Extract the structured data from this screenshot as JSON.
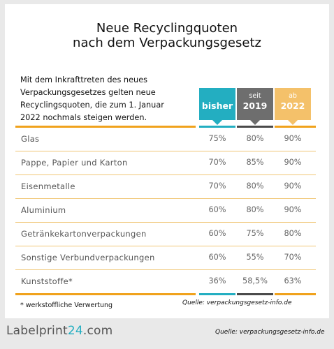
{
  "title_line1": "Neue Recyclingquoten",
  "title_line2": "nach dem Verpackungsgesetz",
  "intro": "Mit dem Inkrafttreten des neues Verpackungsgesetzes gelten neue Recyclingsquoten, die zum 1. Januar 2022 nochmals steigen werden.",
  "columns": {
    "bisher": {
      "label": "bisher",
      "color": "#23aec1"
    },
    "y2019": {
      "prefix": "seit",
      "label": "2019",
      "color": "#6e6e6e"
    },
    "y2022": {
      "prefix": "ab",
      "label": "2022",
      "color": "#f4c16a"
    }
  },
  "rows": [
    {
      "label": "Glas",
      "bisher": "75%",
      "y2019": "80%",
      "y2022": "90%"
    },
    {
      "label": "Pappe, Papier und Karton",
      "bisher": "70%",
      "y2019": "85%",
      "y2022": "90%"
    },
    {
      "label": "Eisenmetalle",
      "bisher": "70%",
      "y2019": "80%",
      "y2022": "90%"
    },
    {
      "label": "Aluminium",
      "bisher": "60%",
      "y2019": "80%",
      "y2022": "90%"
    },
    {
      "label": "Getränkekartonverpackungen",
      "bisher": "60%",
      "y2019": "75%",
      "y2022": "80%"
    },
    {
      "label": "Sonstige Verbundverpackungen",
      "bisher": "60%",
      "y2019": "55%",
      "y2022": "70%"
    },
    {
      "label": "Kunststoffe*",
      "bisher": "36%",
      "y2019": "58,5%",
      "y2022": "63%"
    }
  ],
  "footnote": "* werkstoffliche Verwertung",
  "source_card": "Quelle: verpackungsgesetz-info.de",
  "logo": {
    "part1": "Labelprint",
    "part2": "24",
    "part3": ".com"
  },
  "source_bottom": "Quelle: verpackungsgesetz-info.de",
  "colors": {
    "accent_orange": "#f0a21c",
    "accent_teal": "#23aec1",
    "separator": "#f0c675"
  }
}
